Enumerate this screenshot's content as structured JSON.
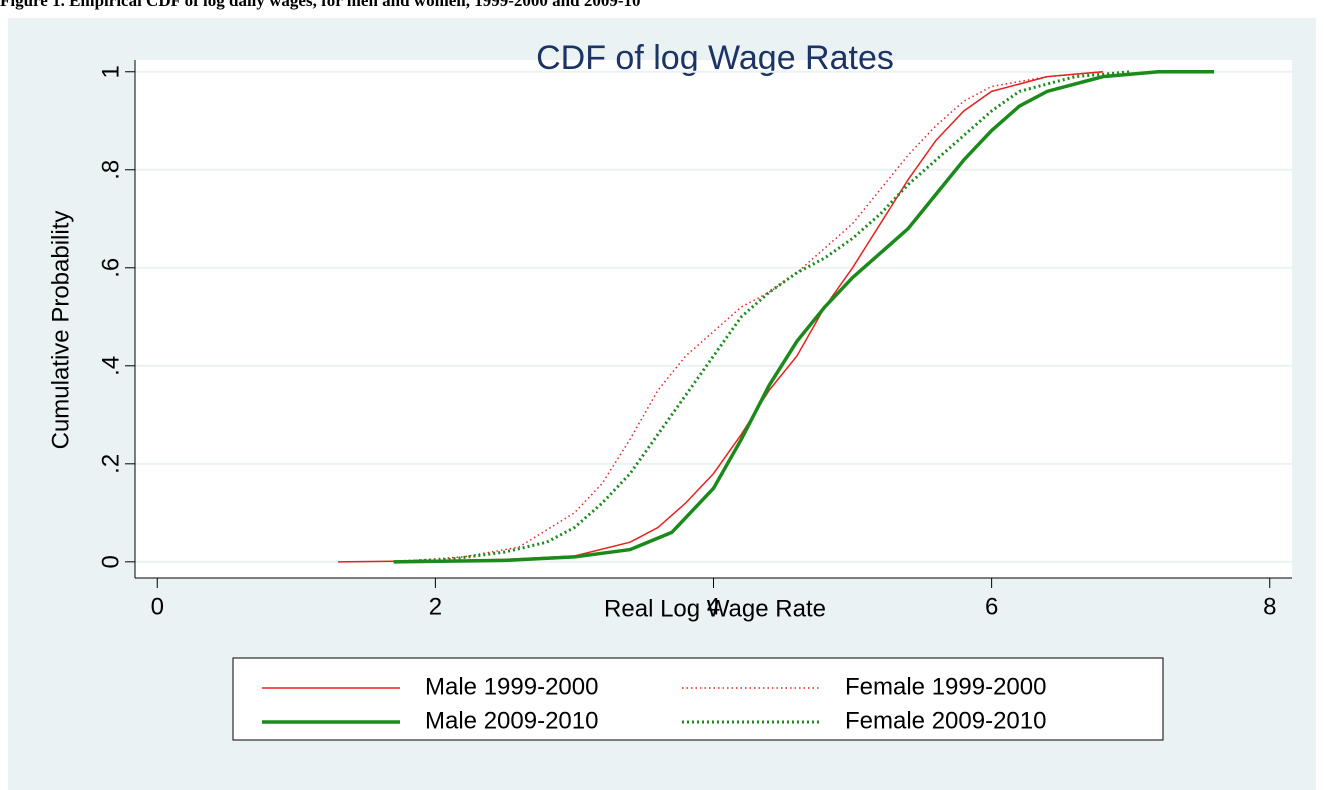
{
  "caption": "Figure 1. Empirical CDF of log daily wages, for men and women, 1999-2000 and 2009-10",
  "chart_data": {
    "type": "line",
    "title": "CDF of log Wage Rates",
    "x_label": "Real Log Wage Rate",
    "y_label": "Cumulative Probability",
    "xlim": [
      -0.16,
      8.16
    ],
    "xticks": [
      0,
      2,
      4,
      6,
      8
    ],
    "ylim": [
      -0.033,
      1.024
    ],
    "yticks": [
      0,
      {
        "value": 0.2,
        "label": ".2"
      },
      {
        "value": 0.4,
        "label": ".4"
      },
      {
        "value": 0.6,
        "label": ".6"
      },
      {
        "value": 0.8,
        "label": ".8"
      },
      1
    ],
    "grid": true,
    "series": [
      {
        "name": "Male 1999-2000",
        "color": "#e8211f",
        "style": "solid",
        "width": 1.5,
        "x": [
          1.3,
          2,
          2.5,
          3,
          3.4,
          3.6,
          3.8,
          4.0,
          4.2,
          4.4,
          4.6,
          4.8,
          5.0,
          5.2,
          5.4,
          5.6,
          5.8,
          6.0,
          6.4,
          6.8
        ],
        "values": [
          0,
          0.002,
          0.005,
          0.012,
          0.04,
          0.07,
          0.12,
          0.18,
          0.26,
          0.35,
          0.42,
          0.52,
          0.6,
          0.69,
          0.78,
          0.86,
          0.92,
          0.96,
          0.99,
          1.0
        ]
      },
      {
        "name": "Female 1999-2000",
        "color": "#e8211f",
        "style": "dotted",
        "width": 1.5,
        "x": [
          1.7,
          2.2,
          2.6,
          3.0,
          3.2,
          3.4,
          3.6,
          3.8,
          4.0,
          4.2,
          4.4,
          4.6,
          4.8,
          5.0,
          5.2,
          5.4,
          5.6,
          5.8,
          6.0,
          6.4,
          6.8
        ],
        "values": [
          0,
          0.01,
          0.03,
          0.1,
          0.16,
          0.25,
          0.35,
          0.42,
          0.47,
          0.52,
          0.55,
          0.59,
          0.64,
          0.69,
          0.76,
          0.83,
          0.89,
          0.94,
          0.97,
          0.99,
          1.0
        ]
      },
      {
        "name": "Male 2009-2010",
        "color": "#1a8a1a",
        "style": "solid",
        "width": 3.5,
        "x": [
          1.7,
          2.5,
          3.0,
          3.4,
          3.7,
          4.0,
          4.2,
          4.4,
          4.6,
          4.8,
          5.0,
          5.2,
          5.4,
          5.6,
          5.8,
          6.0,
          6.2,
          6.4,
          6.8,
          7.2,
          7.6
        ],
        "values": [
          0,
          0.003,
          0.01,
          0.025,
          0.06,
          0.15,
          0.25,
          0.36,
          0.45,
          0.52,
          0.58,
          0.63,
          0.68,
          0.75,
          0.82,
          0.88,
          0.93,
          0.96,
          0.99,
          1.0,
          1.0
        ]
      },
      {
        "name": "Female 2009-2010",
        "color": "#1a8a1a",
        "style": "dotted",
        "width": 3,
        "x": [
          1.7,
          2.1,
          2.5,
          2.8,
          3.0,
          3.2,
          3.4,
          3.6,
          3.8,
          4.0,
          4.2,
          4.4,
          4.6,
          4.8,
          5.0,
          5.2,
          5.4,
          5.6,
          5.8,
          6.0,
          6.2,
          6.6,
          7.0
        ],
        "values": [
          0,
          0.005,
          0.02,
          0.04,
          0.07,
          0.12,
          0.18,
          0.26,
          0.34,
          0.42,
          0.5,
          0.55,
          0.59,
          0.62,
          0.66,
          0.71,
          0.77,
          0.82,
          0.87,
          0.92,
          0.96,
          0.99,
          1.0
        ]
      }
    ]
  }
}
